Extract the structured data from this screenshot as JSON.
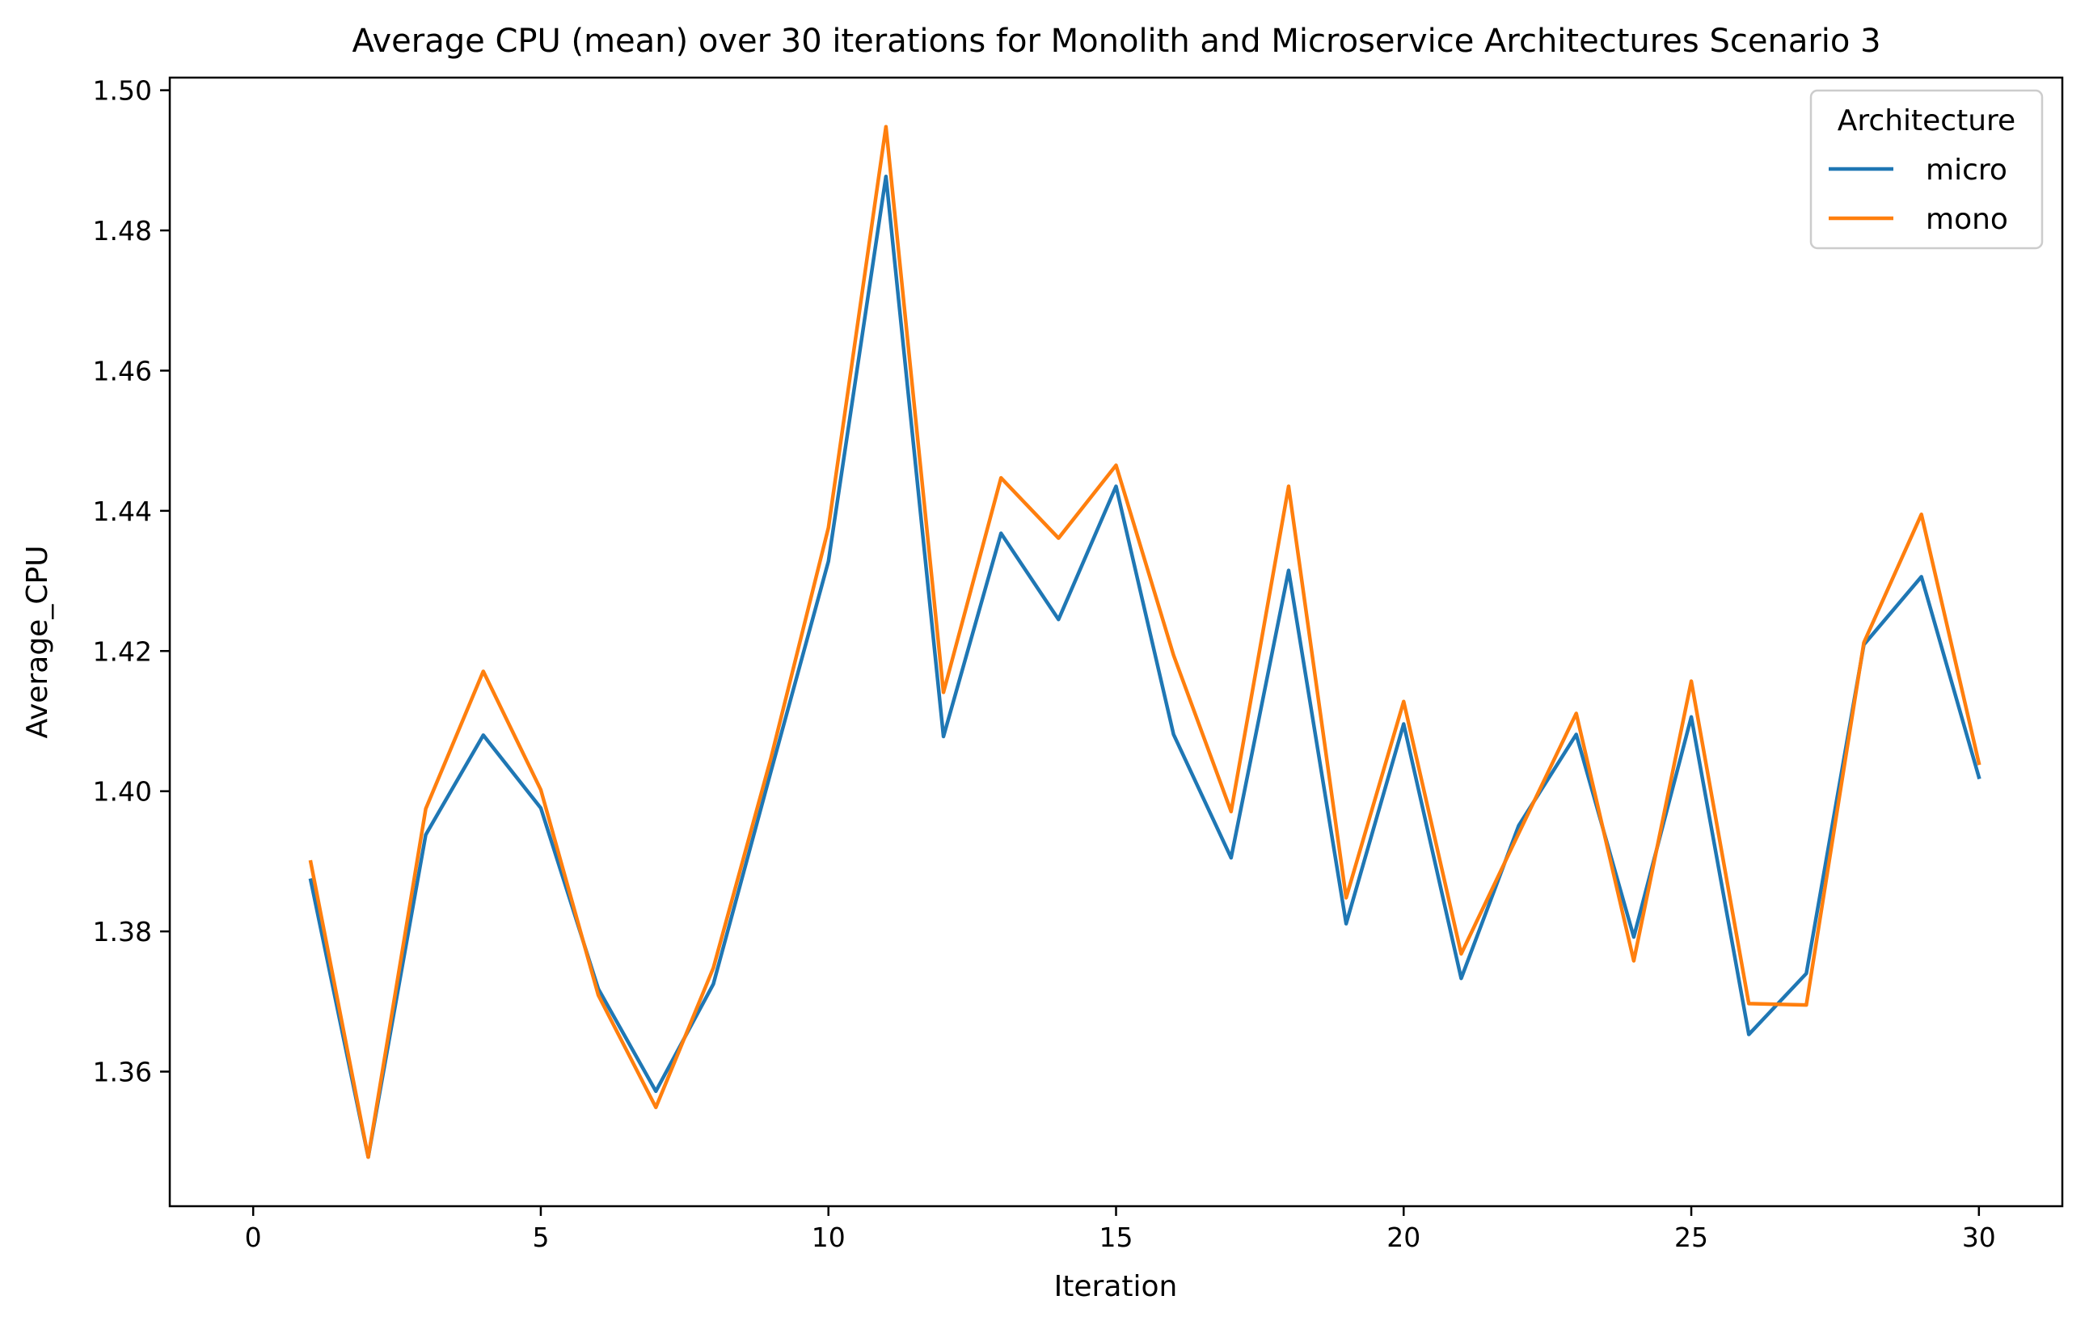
{
  "chart_data": {
    "type": "line",
    "title": "Average CPU (mean) over 30 iterations for Monolith and Microservice Architectures Scenario 3",
    "xlabel": "Iteration",
    "ylabel": "Average_CPU",
    "xlim": [
      -1.45,
      31.45
    ],
    "ylim": [
      1.3408,
      1.5018
    ],
    "xticks": [
      0,
      5,
      10,
      15,
      20,
      25,
      30
    ],
    "yticks": [
      1.36,
      1.38,
      1.4,
      1.42,
      1.44,
      1.46,
      1.48,
      1.5
    ],
    "ytick_labels": [
      "1.36",
      "1.38",
      "1.40",
      "1.42",
      "1.44",
      "1.46",
      "1.48",
      "1.50"
    ],
    "grid": false,
    "legend": {
      "title": "Architecture",
      "placement": "top-right"
    },
    "x": [
      1,
      2,
      3,
      4,
      5,
      6,
      7,
      8,
      9,
      10,
      11,
      12,
      13,
      14,
      15,
      16,
      17,
      18,
      19,
      20,
      21,
      22,
      23,
      24,
      25,
      26,
      27,
      28,
      29,
      30
    ],
    "series": [
      {
        "name": "micro",
        "color": "#1f77b4",
        "values": [
          1.3873,
          1.3478,
          1.3938,
          1.408,
          1.3976,
          1.3718,
          1.3572,
          1.3725,
          1.4028,
          1.4328,
          1.4877,
          1.4078,
          1.4368,
          1.4245,
          1.4435,
          1.4081,
          1.3905,
          1.4315,
          1.3811,
          1.4096,
          1.3733,
          1.3951,
          1.4081,
          1.3792,
          1.4106,
          1.3653,
          1.374,
          1.4209,
          1.4306,
          1.402
        ]
      },
      {
        "name": "mono",
        "color": "#ff7f0e",
        "values": [
          1.3899,
          1.3478,
          1.3975,
          1.4171,
          1.4002,
          1.3709,
          1.3549,
          1.3748,
          1.4047,
          1.4376,
          1.4948,
          1.4141,
          1.4447,
          1.4361,
          1.4465,
          1.4194,
          1.3971,
          1.4435,
          1.3848,
          1.4128,
          1.3768,
          1.394,
          1.4111,
          1.3758,
          1.4157,
          1.3697,
          1.3695,
          1.4212,
          1.4395,
          1.404
        ]
      }
    ]
  }
}
